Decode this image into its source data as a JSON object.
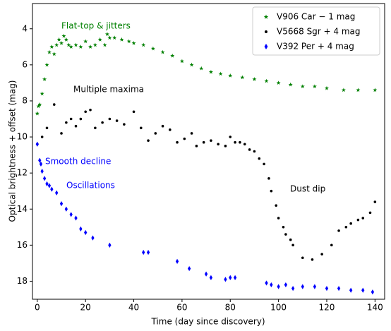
{
  "chart_data": {
    "type": "scatter",
    "xlabel": "Time (day since discovery)",
    "ylabel": "Optical brightness + offset (mag)",
    "xlim": [
      -2,
      144
    ],
    "ylim": [
      19,
      2.6
    ],
    "xticks": [
      0,
      20,
      40,
      60,
      80,
      100,
      120,
      140
    ],
    "yticks": [
      4,
      6,
      8,
      10,
      12,
      14,
      16,
      18
    ],
    "legend": "upper right",
    "series": [
      {
        "name": "V906 Car − 1 mag",
        "color": "#008000",
        "marker": "star",
        "x": [
          0,
          0.5,
          1,
          2,
          3,
          4,
          5,
          6,
          7,
          8,
          9,
          10,
          11,
          12,
          13,
          14,
          16,
          18,
          20,
          22,
          24,
          26,
          28,
          29,
          30,
          32,
          35,
          38,
          40,
          44,
          48,
          52,
          56,
          60,
          64,
          68,
          72,
          76,
          80,
          85,
          90,
          95,
          100,
          105,
          110,
          115,
          120,
          127,
          133,
          140
        ],
        "values": [
          8.7,
          8.3,
          8.2,
          7.6,
          6.8,
          6.0,
          5.3,
          5.0,
          5.4,
          4.9,
          4.6,
          4.8,
          4.4,
          4.6,
          4.9,
          5.0,
          4.9,
          5.0,
          4.7,
          5.0,
          4.9,
          4.6,
          4.9,
          4.3,
          4.5,
          4.5,
          4.6,
          4.7,
          4.8,
          4.9,
          5.1,
          5.3,
          5.5,
          5.8,
          6.0,
          6.2,
          6.4,
          6.5,
          6.6,
          6.7,
          6.8,
          6.9,
          7.0,
          7.1,
          7.2,
          7.2,
          7.3,
          7.4,
          7.4,
          7.4
        ]
      },
      {
        "name": "V5668 Sgr + 4 mag",
        "color": "#000000",
        "marker": "dot",
        "x": [
          0,
          2,
          4,
          7,
          10,
          12,
          14,
          16,
          18,
          20,
          22,
          24,
          27,
          30,
          33,
          36,
          40,
          43,
          46,
          49,
          52,
          55,
          58,
          61,
          64,
          66,
          69,
          72,
          75,
          78,
          80,
          82,
          84,
          86,
          88,
          90,
          92,
          94,
          96,
          97,
          99,
          100,
          102,
          103,
          105,
          106,
          110,
          114,
          118,
          122,
          125,
          128,
          130,
          133,
          135,
          138,
          140
        ],
        "values": [
          10.4,
          10.0,
          9.5,
          8.2,
          9.8,
          9.2,
          9.0,
          9.4,
          9.0,
          8.6,
          8.5,
          9.5,
          9.2,
          9.0,
          9.1,
          9.3,
          8.6,
          9.5,
          10.2,
          9.8,
          9.4,
          9.6,
          10.3,
          10.1,
          9.8,
          10.5,
          10.3,
          10.2,
          10.4,
          10.5,
          10.0,
          10.3,
          10.3,
          10.4,
          10.7,
          10.8,
          11.2,
          11.5,
          12.3,
          13.0,
          13.8,
          14.5,
          15.0,
          15.4,
          15.7,
          16.0,
          16.7,
          16.8,
          16.5,
          16.0,
          15.2,
          15.0,
          14.8,
          14.6,
          14.5,
          14.2,
          13.6
        ]
      },
      {
        "name": "V392 Per + 4 mag",
        "color": "#0000ff",
        "marker": "diamond",
        "x": [
          0,
          1,
          1.5,
          2,
          3,
          4,
          5,
          6,
          8,
          10,
          12,
          14,
          16,
          18,
          20,
          23,
          30,
          44,
          46,
          58,
          63,
          70,
          72,
          78,
          80,
          82,
          95,
          97,
          100,
          103,
          106,
          110,
          115,
          120,
          125,
          130,
          135,
          139
        ],
        "values": [
          10.4,
          11.3,
          11.5,
          11.9,
          12.3,
          12.6,
          12.7,
          12.9,
          13.1,
          13.7,
          14.0,
          14.3,
          14.5,
          15.1,
          15.3,
          15.6,
          16.0,
          16.4,
          16.4,
          16.9,
          17.3,
          17.6,
          17.8,
          17.9,
          17.8,
          17.8,
          18.1,
          18.2,
          18.3,
          18.2,
          18.4,
          18.3,
          18.3,
          18.4,
          18.4,
          18.5,
          18.5,
          18.6
        ]
      }
    ],
    "annotations": [
      {
        "text": "Flat-top & jitters",
        "color": "#008000"
      },
      {
        "text": "Multiple maxima",
        "color": "#000000"
      },
      {
        "text": "Smooth decline",
        "color": "#0000ff"
      },
      {
        "text": "Oscillations",
        "color": "#0000ff"
      },
      {
        "text": "Dust dip",
        "color": "#000000"
      }
    ]
  }
}
